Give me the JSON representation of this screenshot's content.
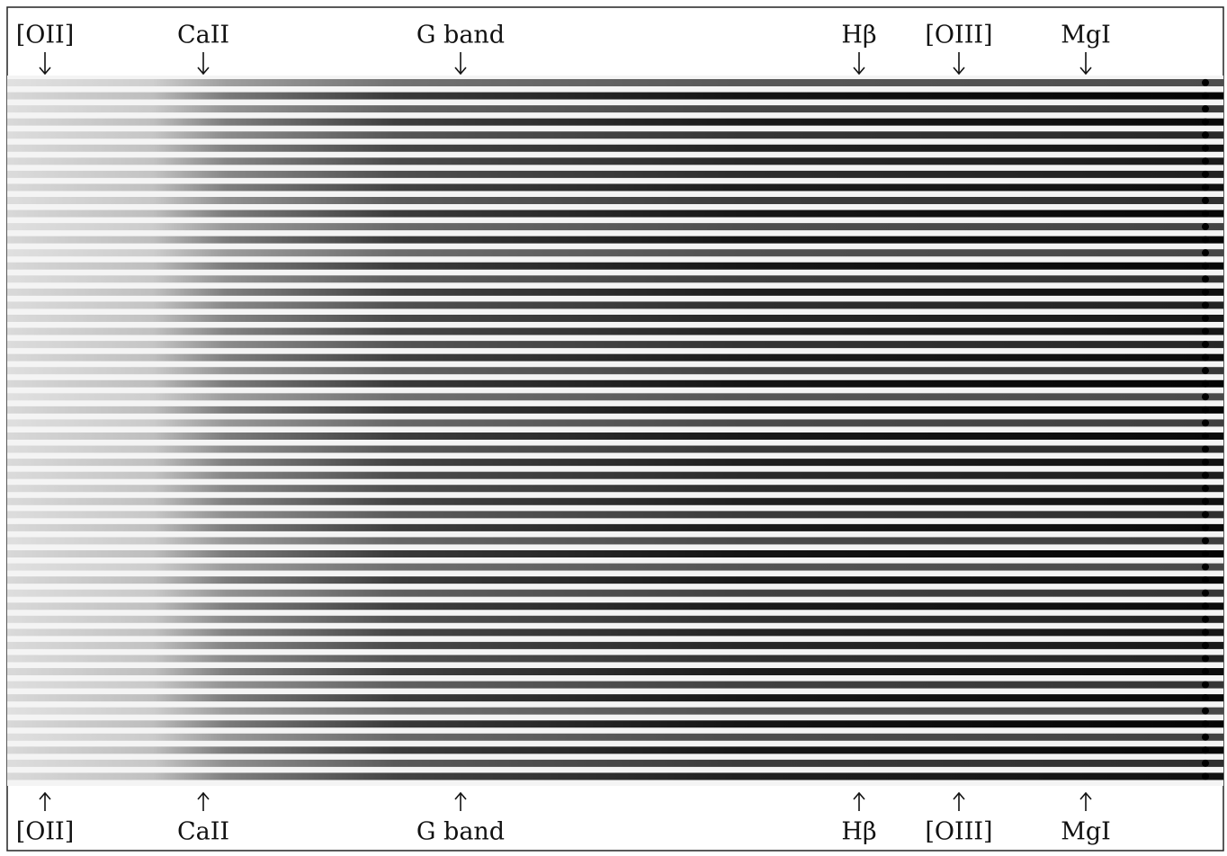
{
  "top_labels": [
    "[OII]",
    "CaII",
    "G band",
    "Hβ",
    "[OIII]",
    "MgI"
  ],
  "bottom_labels": [
    "[OII]",
    "CaII",
    "G band",
    "Hβ",
    "[OIII]",
    "MgI"
  ]
}
